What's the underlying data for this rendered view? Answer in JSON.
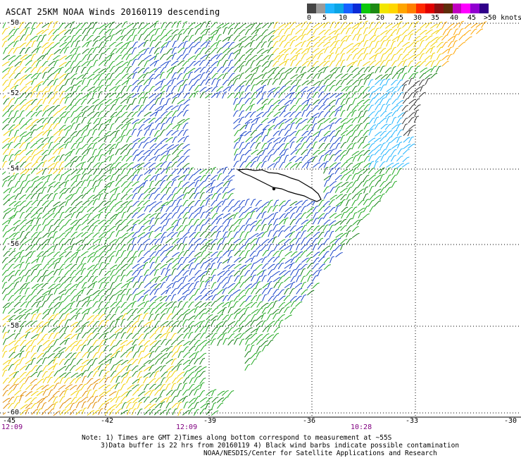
{
  "title": "ASCAT 25KM NOAA Winds 20160119 descending",
  "legend": {
    "colors": [
      "#444444",
      "#9a9a9a",
      "#1fb4ff",
      "#0ba5e5",
      "#1760ff",
      "#0c2bd6",
      "#0cc80c",
      "#1d8a14",
      "#f2e600",
      "#ffd700",
      "#ffa500",
      "#ff7f00",
      "#ff2a00",
      "#e00000",
      "#8b1010",
      "#5e2d0a",
      "#c000c0",
      "#ff00ff",
      "#9000d0",
      "#30008a"
    ],
    "labels": [
      "0",
      "5",
      "10",
      "15",
      "20",
      "25",
      "30",
      "35",
      "40",
      "45",
      ">50 knots"
    ]
  },
  "lat_labels": [
    "-50",
    "-52",
    "-54",
    "-56",
    "-58",
    "-60"
  ],
  "lon_labels": [
    "-45",
    "-42",
    "-39",
    "-36",
    "-33",
    "-30"
  ],
  "time_labels": [
    "12:09",
    "12:09",
    "10:28"
  ],
  "notes": [
    "Note: 1) Times are GMT 2)Times along bottom correspond to measurement at ~55S",
    "3)Data buffer is 22 hrs from 20160119 4) Black wind barbs indicate possible contamination",
    "NOAA/NESDIS/Center for Satellite Applications and Research"
  ]
}
